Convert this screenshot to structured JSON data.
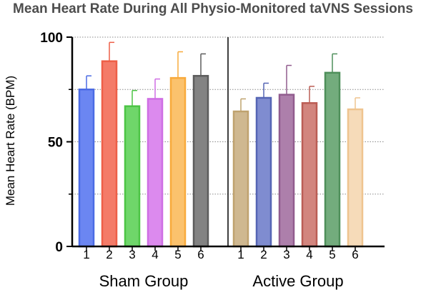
{
  "chart_data": {
    "type": "bar",
    "title": "Mean Heart Rate During All Physio-Monitored taVNS Sessions",
    "xlabel": "",
    "ylabel": "Mean Heart Rate (BPM)",
    "ylim": [
      0,
      100
    ],
    "yticks": [
      "0",
      "50",
      "100"
    ],
    "grid": "dotted horizontal at 25, 50, 75, 100",
    "groups": [
      {
        "name": "Sham Group",
        "categories": [
          "1",
          "2",
          "3",
          "4",
          "5",
          "6"
        ],
        "values": [
          75,
          88.5,
          67,
          70.5,
          80.5,
          81.5
        ],
        "errors": [
          6.5,
          9,
          7.5,
          9.5,
          12.5,
          10.5
        ],
        "colors": [
          "#6b86f2",
          "#f47b68",
          "#6fd66a",
          "#dc8aee",
          "#fbc26d",
          "#838383"
        ],
        "edge_colors": [
          "#4b6be4",
          "#ee5f47",
          "#4cc445",
          "#cf6ee4",
          "#f8aa3c",
          "#5c5c5c"
        ]
      },
      {
        "name": "Active Group",
        "categories": [
          "1",
          "2",
          "3",
          "4",
          "5",
          "6"
        ],
        "values": [
          64.5,
          71,
          72.5,
          68.5,
          83,
          65.5
        ],
        "errors": [
          6,
          7,
          14,
          8,
          9,
          5.5
        ],
        "colors": [
          "#cfb890",
          "#7f8cd0",
          "#ad7fab",
          "#d2857e",
          "#73ac7d",
          "#f6dbb9"
        ],
        "edge_colors": [
          "#bfa26e",
          "#5565b4",
          "#915c8e",
          "#bb5d55",
          "#4e8f5a",
          "#efc48f"
        ]
      }
    ]
  }
}
